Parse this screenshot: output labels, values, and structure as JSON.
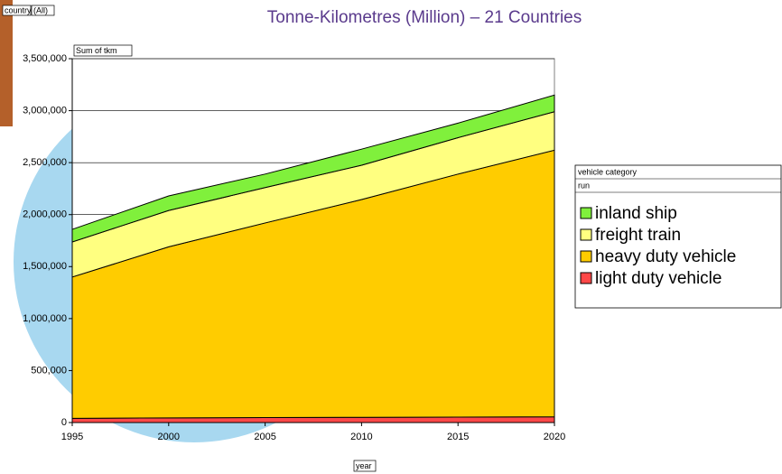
{
  "chart_data": {
    "type": "area",
    "title": "Tonne-Kilometres (Million)  – 21 Countries",
    "page_field_name": "country",
    "page_field_value": "(All)",
    "data_field": "Sum of tkm",
    "legend_title": "vehicle category",
    "legend_subtitle": "run",
    "xlabel": "year",
    "x": [
      1995,
      2000,
      2005,
      2010,
      2015,
      2020
    ],
    "xlim": [
      1995,
      2020
    ],
    "xticks": [
      1995,
      2000,
      2005,
      2010,
      2015,
      2020
    ],
    "ylim": [
      0,
      3500000
    ],
    "yticks": [
      0,
      {
        "value": 500000,
        "label": "500,000"
      },
      {
        "value": 1000000,
        "label": "1,000,000"
      },
      {
        "value": 1500000,
        "label": "1,500,000"
      },
      {
        "value": 2000000,
        "label": "2,000,000"
      },
      {
        "value": 2500000,
        "label": "2,500,000"
      },
      {
        "value": 3000000,
        "label": "3,000,000"
      },
      {
        "value": 3500000,
        "label": "3,500,000"
      }
    ],
    "grid": true,
    "stacked": true,
    "series": [
      {
        "name": "inland ship",
        "color": "#80f03c",
        "values": [
          121000,
          140000,
          130000,
          155000,
          140000,
          160000
        ]
      },
      {
        "name": "freight train",
        "color": "#ffff80",
        "values": [
          337000,
          350000,
          340000,
          330000,
          350000,
          370000
        ]
      },
      {
        "name": "heavy duty vehicle",
        "color": "#ffcc00",
        "values": [
          1360000,
          1645000,
          1872000,
          2095000,
          2338000,
          2565000
        ]
      },
      {
        "name": "light duty vehicle",
        "color": "#ff4848",
        "values": [
          40000,
          45000,
          48000,
          50000,
          52000,
          55000
        ]
      }
    ]
  }
}
